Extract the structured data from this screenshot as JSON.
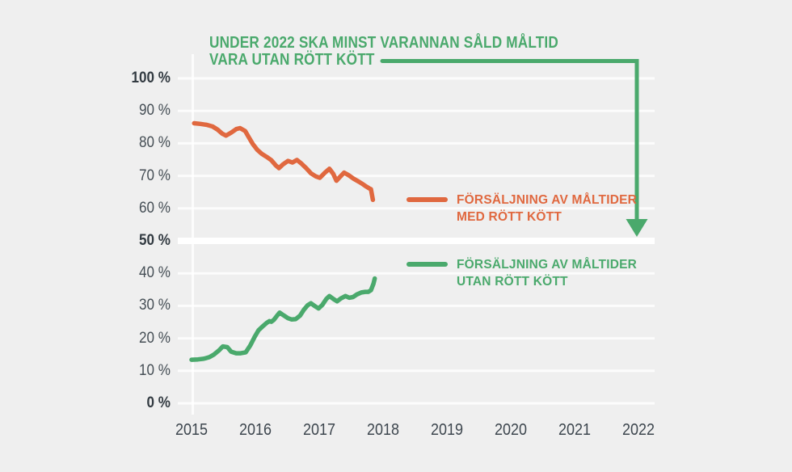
{
  "title": {
    "line1": "UNDER 2022 SKA MINST VARANNAN SÅLD MÅLTID",
    "line2": "VARA UTAN RÖTT KÖTT"
  },
  "colors": {
    "background": "#efefef",
    "grid": "#ffffff",
    "green": "#4aa96c",
    "orange": "#e0683f",
    "text_dark": "#3b444c"
  },
  "legend": [
    {
      "id": "med-rott-kott",
      "line1": "FÖRSÄLJNING AV MÅLTIDER",
      "line2": "MED RÖTT KÖTT",
      "color": "#e0683f"
    },
    {
      "id": "utan-rott-kott",
      "line1": "FÖRSÄLJNING AV MÅLTIDER",
      "line2": "UTAN RÖTT KÖTT",
      "color": "#4aa96c"
    }
  ],
  "goal": {
    "year": 2022,
    "target_percent": 50
  },
  "chart_data": {
    "type": "line",
    "title": "UNDER 2022 SKA MINST VARANNAN SÅLD MÅLTID VARA UTAN RÖTT KÖTT",
    "x_axis": {
      "ticks": [
        2015,
        2016,
        2017,
        2018,
        2019,
        2020,
        2021,
        2022
      ],
      "range": [
        2015,
        2022.2
      ]
    },
    "y_axis": {
      "range": [
        0,
        100
      ],
      "ticks": [
        {
          "value": 100,
          "label": "100 %",
          "bold": true
        },
        {
          "value": 90,
          "label": "90 %",
          "bold": false
        },
        {
          "value": 80,
          "label": "80 %",
          "bold": false
        },
        {
          "value": 70,
          "label": "70 %",
          "bold": false
        },
        {
          "value": 60,
          "label": "60 %",
          "bold": false
        },
        {
          "value": 50,
          "label": "50 %",
          "bold": true
        },
        {
          "value": 40,
          "label": "40 %",
          "bold": false
        },
        {
          "value": 30,
          "label": "30 %",
          "bold": false
        },
        {
          "value": 20,
          "label": "20 %",
          "bold": false
        },
        {
          "value": 10,
          "label": "10 %",
          "bold": false
        },
        {
          "value": 0,
          "label": "0 %",
          "bold": true
        }
      ]
    },
    "annotation_arrow": {
      "from_year_label": 2022,
      "points_to_percent": 50,
      "color": "#4aa96c"
    },
    "series": [
      {
        "name": "FÖRSÄLJNING AV MÅLTIDER MED RÖTT KÖTT",
        "color": "#e0683f",
        "points": [
          [
            2015.04,
            86.2
          ],
          [
            2015.14,
            86.0
          ],
          [
            2015.24,
            85.7
          ],
          [
            2015.33,
            85.2
          ],
          [
            2015.41,
            84.2
          ],
          [
            2015.48,
            83.0
          ],
          [
            2015.54,
            82.4
          ],
          [
            2015.62,
            83.3
          ],
          [
            2015.7,
            84.4
          ],
          [
            2015.76,
            84.7
          ],
          [
            2015.84,
            83.8
          ],
          [
            2015.9,
            81.8
          ],
          [
            2015.96,
            79.8
          ],
          [
            2016.03,
            78.0
          ],
          [
            2016.1,
            76.8
          ],
          [
            2016.18,
            75.8
          ],
          [
            2016.25,
            74.8
          ],
          [
            2016.32,
            73.2
          ],
          [
            2016.37,
            72.4
          ],
          [
            2016.43,
            73.5
          ],
          [
            2016.51,
            74.6
          ],
          [
            2016.58,
            74.1
          ],
          [
            2016.65,
            74.9
          ],
          [
            2016.72,
            73.8
          ],
          [
            2016.8,
            72.3
          ],
          [
            2016.87,
            70.8
          ],
          [
            2016.95,
            69.8
          ],
          [
            2017.01,
            69.4
          ],
          [
            2017.09,
            71.0
          ],
          [
            2017.16,
            72.2
          ],
          [
            2017.22,
            70.6
          ],
          [
            2017.27,
            68.5
          ],
          [
            2017.33,
            69.8
          ],
          [
            2017.39,
            71.0
          ],
          [
            2017.47,
            70.1
          ],
          [
            2017.54,
            69.1
          ],
          [
            2017.62,
            68.2
          ],
          [
            2017.68,
            67.5
          ],
          [
            2017.73,
            66.8
          ],
          [
            2017.78,
            66.2
          ],
          [
            2017.81,
            65.9
          ],
          [
            2017.84,
            62.6
          ]
        ]
      },
      {
        "name": "FÖRSÄLJNING AV MÅLTIDER UTAN RÖTT KÖTT",
        "color": "#4aa96c",
        "points": [
          [
            2015.0,
            13.4
          ],
          [
            2015.1,
            13.5
          ],
          [
            2015.19,
            13.7
          ],
          [
            2015.28,
            14.2
          ],
          [
            2015.35,
            15.0
          ],
          [
            2015.43,
            16.3
          ],
          [
            2015.49,
            17.5
          ],
          [
            2015.56,
            17.3
          ],
          [
            2015.62,
            15.9
          ],
          [
            2015.7,
            15.4
          ],
          [
            2015.77,
            15.4
          ],
          [
            2015.85,
            15.7
          ],
          [
            2015.92,
            17.8
          ],
          [
            2015.99,
            20.5
          ],
          [
            2016.05,
            22.5
          ],
          [
            2016.11,
            23.6
          ],
          [
            2016.18,
            24.8
          ],
          [
            2016.22,
            25.3
          ],
          [
            2016.25,
            25.1
          ],
          [
            2016.29,
            25.7
          ],
          [
            2016.34,
            27.0
          ],
          [
            2016.38,
            27.9
          ],
          [
            2016.44,
            27.1
          ],
          [
            2016.51,
            26.2
          ],
          [
            2016.57,
            25.8
          ],
          [
            2016.63,
            25.9
          ],
          [
            2016.7,
            27.0
          ],
          [
            2016.76,
            28.8
          ],
          [
            2016.82,
            30.2
          ],
          [
            2016.87,
            30.8
          ],
          [
            2016.94,
            29.8
          ],
          [
            2016.99,
            29.2
          ],
          [
            2017.05,
            30.3
          ],
          [
            2017.11,
            32.1
          ],
          [
            2017.16,
            33.0
          ],
          [
            2017.23,
            32.0
          ],
          [
            2017.28,
            31.4
          ],
          [
            2017.34,
            32.3
          ],
          [
            2017.41,
            33.0
          ],
          [
            2017.47,
            32.5
          ],
          [
            2017.53,
            32.7
          ],
          [
            2017.59,
            33.5
          ],
          [
            2017.66,
            34.1
          ],
          [
            2017.72,
            34.3
          ],
          [
            2017.77,
            34.3
          ],
          [
            2017.81,
            34.8
          ],
          [
            2017.85,
            36.8
          ],
          [
            2017.87,
            38.4
          ]
        ]
      }
    ]
  }
}
